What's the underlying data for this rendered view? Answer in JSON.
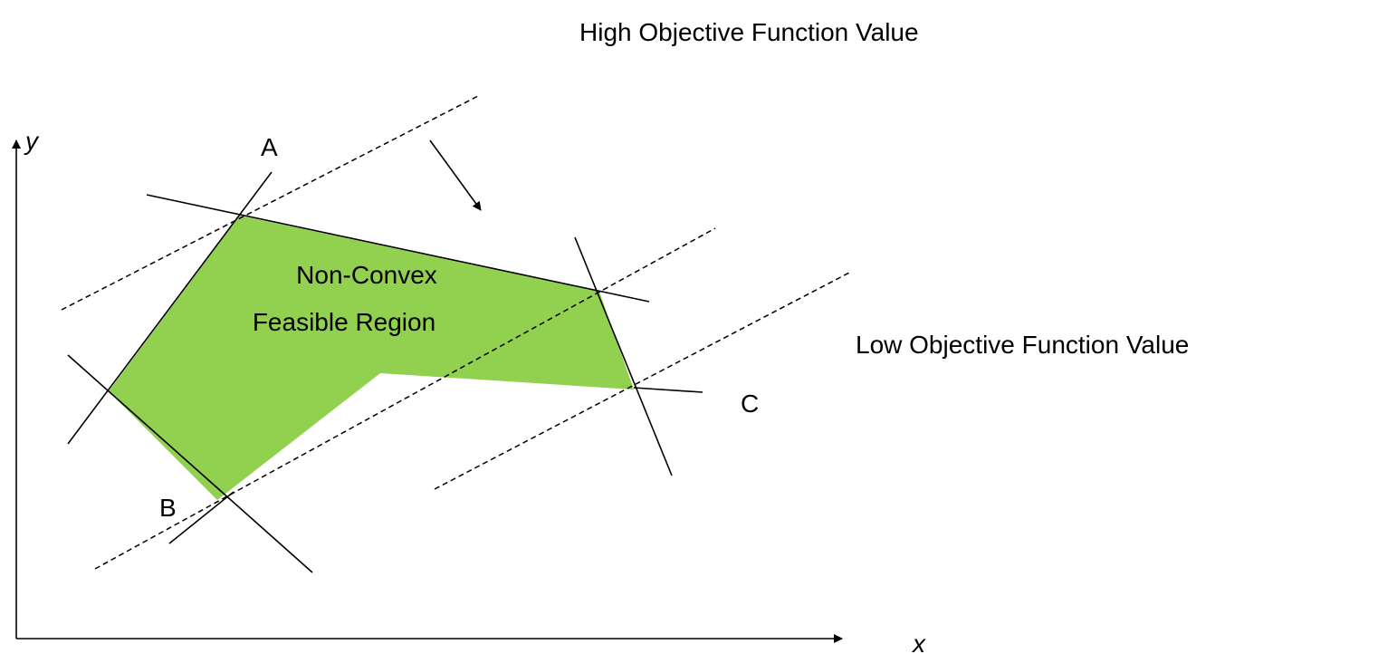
{
  "labels": {
    "high": "High Objective Function Value",
    "low": "Low Objective Function Value",
    "y_axis": "y",
    "x_axis": "x",
    "a": "A",
    "b": "B",
    "c": "C",
    "region_line1": "Non-Convex",
    "region_line2": "Feasible Region"
  }
}
